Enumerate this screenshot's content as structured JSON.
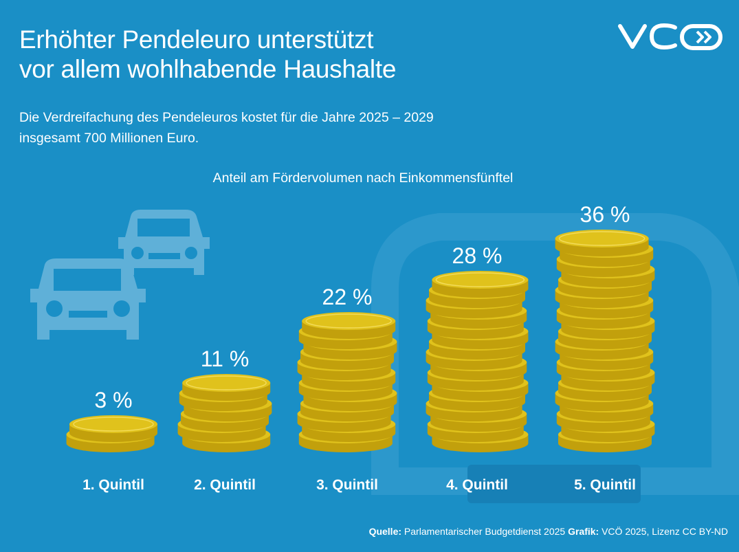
{
  "title": {
    "line1": "Erhöhter Pendeleuro unterstützt",
    "line2": "vor allem wohlhabende Haushalte"
  },
  "subtitle": {
    "line1": "Die Verdreifachung des Pendeleuros kostet für die Jahre 2025 – 2029",
    "line2": "insgesamt 700 Millionen Euro."
  },
  "logo": {
    "text": "VCÖ",
    "icon": "vco-logo-icon"
  },
  "footer": {
    "source_label": "Quelle:",
    "source_text": " Parlamentarischer Budgetdienst 2025 ",
    "graphic_label": "Grafik:",
    "graphic_text": " VCÖ 2025, Lizenz CC BY-ND"
  },
  "colors": {
    "background": "#1a8fc6",
    "coin": "#e0c21c",
    "coin_dark": "#c2a00c",
    "car_icon": "#5fb0d8",
    "highlight_box": "#1780b6"
  },
  "chart_data": {
    "type": "bar",
    "title": "Anteil am Fördervolumen nach Einkommensfünftel",
    "categories": [
      "1. Quintil",
      "2. Quintil",
      "3. Quintil",
      "4. Quintil",
      "5. Quintil"
    ],
    "values": [
      3,
      11,
      22,
      28,
      36
    ],
    "value_labels": [
      "3 %",
      "11 %",
      "22 %",
      "28 %",
      "36 %"
    ],
    "unit": "%",
    "mark_style": "stacked euro coins",
    "highlighted_category": "5. Quintil"
  }
}
